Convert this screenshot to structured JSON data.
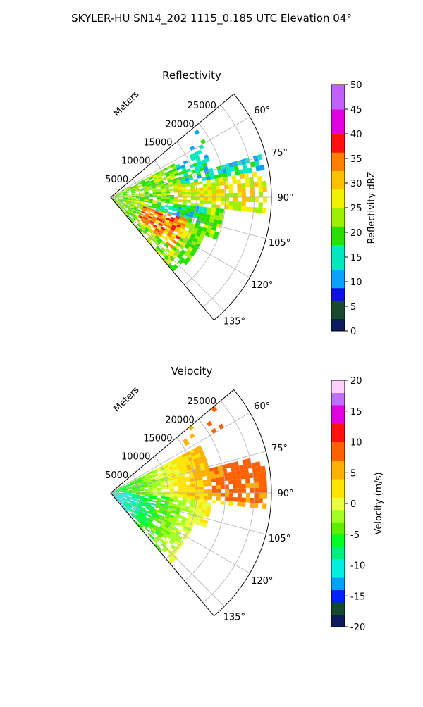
{
  "suptitle": "SKYLER-HU  SN14_202  1115_0.185 UTC Elevation 04°",
  "chart_data": [
    {
      "type": "heatmap",
      "title": "Reflectivity",
      "projection": "polar-sector",
      "theta_range_deg": [
        50,
        140
      ],
      "r_range_m": [
        0,
        28000
      ],
      "r_axis_label": "Meters",
      "r_ticks": [
        "5000",
        "10000",
        "15000",
        "20000",
        "25000"
      ],
      "theta_ticks": [
        "60°",
        "75°",
        "90°",
        "105°",
        "120°",
        "135°"
      ],
      "grid": true,
      "colorbar": {
        "label": "Reflectivity dBZ",
        "range": [
          0,
          50
        ],
        "ticks": [
          "0",
          "5",
          "10",
          "15",
          "20",
          "25",
          "30",
          "35",
          "40",
          "45",
          "50"
        ]
      }
    },
    {
      "type": "heatmap",
      "title": "Velocity",
      "projection": "polar-sector",
      "theta_range_deg": [
        50,
        140
      ],
      "r_range_m": [
        0,
        28000
      ],
      "r_axis_label": "Meters",
      "r_ticks": [
        "5000",
        "10000",
        "15000",
        "20000",
        "25000"
      ],
      "theta_ticks": [
        "60°",
        "75°",
        "90°",
        "105°",
        "120°",
        "135°"
      ],
      "grid": true,
      "colorbar": {
        "label": "Velocity (m/s)",
        "range": [
          -20,
          20
        ],
        "ticks": [
          "-20",
          "-15",
          "-10",
          "-5",
          "0",
          "5",
          "10",
          "15",
          "20"
        ]
      }
    }
  ]
}
